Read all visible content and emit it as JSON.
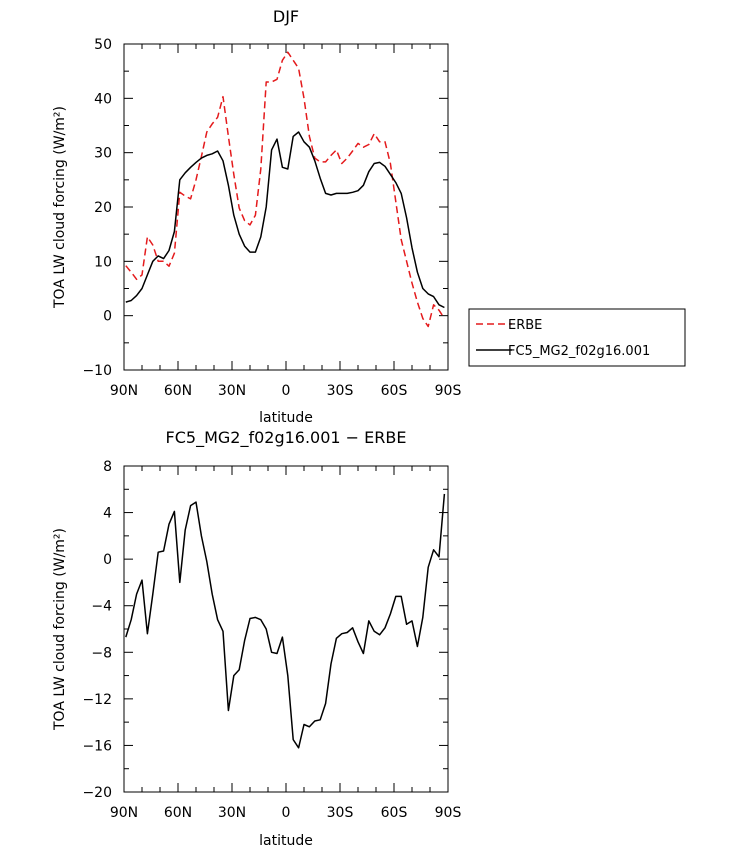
{
  "chart_data": [
    {
      "type": "line",
      "title": "DJF",
      "xlabel": "latitude",
      "ylabel": "TOA LW cloud forcing (W/m²)",
      "xlim": [
        -90,
        90
      ],
      "ylim": [
        -10,
        50
      ],
      "yticks": [
        -10,
        0,
        10,
        20,
        30,
        40,
        50
      ],
      "xticks": [
        -90,
        -60,
        -30,
        0,
        30,
        60,
        90
      ],
      "xtick_labels": [
        "90N",
        "60N",
        "30N",
        "0",
        "30S",
        "60S",
        "90S"
      ],
      "legend_position": "outside-right",
      "series": [
        {
          "name": "ERBE",
          "color": "#e41a1c",
          "dash": "dashed",
          "x": [
            -89,
            -86,
            -83,
            -80,
            -77,
            -74,
            -71,
            -68,
            -65,
            -62,
            -59,
            -56,
            -53,
            -50,
            -47,
            -44,
            -41,
            -38,
            -35,
            -32,
            -29,
            -26,
            -23,
            -20,
            -17,
            -14,
            -11,
            -8,
            -5,
            -2,
            1,
            4,
            7,
            10,
            13,
            16,
            19,
            22,
            25,
            28,
            31,
            34,
            37,
            40,
            43,
            46,
            49,
            52,
            55,
            58,
            61,
            64,
            67,
            70,
            73,
            76,
            79,
            82,
            85,
            88
          ],
          "y": [
            9.2,
            8,
            6.7,
            7.5,
            14.5,
            13,
            10,
            10,
            9.1,
            11.5,
            22.7,
            22,
            21.5,
            25,
            29.3,
            33.8,
            35.3,
            36.5,
            40.3,
            33,
            26,
            19.8,
            17.5,
            16.7,
            18.5,
            27,
            43,
            43,
            43.5,
            47,
            48.5,
            47,
            45.5,
            40,
            33,
            29,
            28.3,
            28.3,
            29.5,
            30.5,
            28,
            29,
            30.3,
            31.7,
            31,
            31.5,
            33.5,
            32,
            32,
            28,
            21,
            14,
            10,
            6,
            2.5,
            -0.5,
            -2,
            2,
            1,
            -0.5
          ]
        },
        {
          "name": "FC5_MG2_f02g16.001",
          "color": "#000000",
          "dash": "solid",
          "x": [
            -89,
            -86,
            -83,
            -80,
            -77,
            -74,
            -71,
            -68,
            -65,
            -62,
            -59,
            -56,
            -53,
            -50,
            -47,
            -44,
            -41,
            -38,
            -35,
            -32,
            -29,
            -26,
            -23,
            -20,
            -17,
            -14,
            -11,
            -8,
            -5,
            -2,
            1,
            4,
            7,
            10,
            13,
            16,
            19,
            22,
            25,
            28,
            31,
            34,
            37,
            40,
            43,
            46,
            49,
            52,
            55,
            58,
            61,
            64,
            67,
            70,
            73,
            76,
            79,
            82,
            85,
            88
          ],
          "y": [
            2.5,
            2.8,
            3.7,
            5,
            7.5,
            10,
            11,
            10.5,
            12,
            15.5,
            25,
            26.3,
            27.3,
            28.2,
            29,
            29.5,
            29.8,
            30.3,
            28.5,
            24,
            18.5,
            15,
            12.8,
            11.7,
            11.7,
            14.5,
            20,
            30.5,
            32.5,
            27.3,
            27,
            33,
            33.8,
            32,
            31,
            28.5,
            25.3,
            22.5,
            22.2,
            22.5,
            22.5,
            22.5,
            22.7,
            23,
            24,
            26.5,
            28,
            28.2,
            27.5,
            26,
            24.5,
            22.5,
            18,
            12.5,
            8,
            5,
            4,
            3.5,
            2,
            1.5
          ]
        }
      ]
    },
    {
      "type": "line",
      "title": "FC5_MG2_f02g16.001 − ERBE",
      "xlabel": "latitude",
      "ylabel": "TOA LW cloud forcing (W/m²)",
      "xlim": [
        -90,
        90
      ],
      "ylim": [
        -20,
        8
      ],
      "yticks": [
        -20,
        -16,
        -12,
        -8,
        -4,
        0,
        4,
        8
      ],
      "xticks": [
        -90,
        -60,
        -30,
        0,
        30,
        60,
        90
      ],
      "xtick_labels": [
        "90N",
        "60N",
        "30N",
        "0",
        "30S",
        "60S",
        "90S"
      ],
      "series": [
        {
          "name": "FC5_MG2_f02g16.001 - ERBE",
          "color": "#000000",
          "dash": "solid",
          "x": [
            -89,
            -86,
            -83,
            -80,
            -77,
            -74,
            -71,
            -68,
            -65,
            -62,
            -59,
            -56,
            -53,
            -50,
            -47,
            -44,
            -41,
            -38,
            -35,
            -32,
            -29,
            -26,
            -23,
            -20,
            -17,
            -14,
            -11,
            -8,
            -5,
            -2,
            1,
            4,
            7,
            10,
            13,
            16,
            19,
            22,
            25,
            28,
            31,
            34,
            37,
            40,
            43,
            46,
            49,
            52,
            55,
            58,
            61,
            64,
            67,
            70,
            73,
            76,
            79,
            82,
            85,
            88
          ],
          "y": [
            -6.7,
            -5.2,
            -3,
            -1.8,
            -6.4,
            -3,
            0.6,
            0.7,
            3,
            4.1,
            -2,
            2.5,
            4.6,
            4.9,
            2,
            -0.2,
            -3,
            -5.2,
            -6.2,
            -13,
            -10,
            -9.5,
            -7,
            -5.1,
            -5,
            -5.2,
            -6,
            -8,
            -8.1,
            -6.7,
            -10,
            -15.5,
            -16.2,
            -14.2,
            -14.4,
            -13.9,
            -13.8,
            -12.4,
            -9,
            -6.8,
            -6.4,
            -6.3,
            -5.9,
            -7.1,
            -8.1,
            -5.3,
            -6.2,
            -6.5,
            -5.9,
            -4.7,
            -3.2,
            -3.2,
            -5.6,
            -5.3,
            -7.5,
            -5,
            -0.7,
            0.8,
            0.2,
            5.6
          ]
        }
      ]
    }
  ]
}
